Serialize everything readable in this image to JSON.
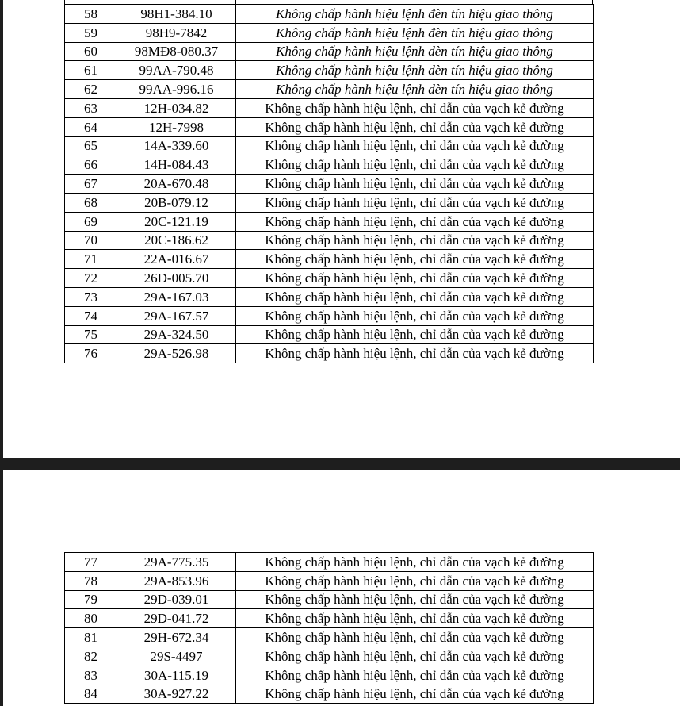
{
  "pages": [
    {
      "table": {
        "rows": [
          [
            "58",
            "98H1-384.10",
            "Không chấp hành hiệu lệnh đèn tín hiệu giao thông"
          ],
          [
            "59",
            "98H9-7842",
            "Không chấp hành hiệu lệnh đèn tín hiệu giao thông"
          ],
          [
            "60",
            "98MĐ8-080.37",
            "Không chấp hành hiệu lệnh đèn tín hiệu giao thông"
          ],
          [
            "61",
            "99AA-790.48",
            "Không chấp hành hiệu lệnh đèn tín hiệu giao thông"
          ],
          [
            "62",
            "99AA-996.16",
            "Không chấp hành hiệu lệnh đèn tín hiệu giao thông"
          ],
          [
            "63",
            "12H-034.82",
            "Không chấp hành hiệu lệnh, chỉ dẫn của vạch kẻ đường"
          ],
          [
            "64",
            "12H-7998",
            "Không chấp hành hiệu lệnh, chỉ dẫn của vạch kẻ đường"
          ],
          [
            "65",
            "14A-339.60",
            "Không chấp hành hiệu lệnh, chỉ dẫn của vạch kẻ đường"
          ],
          [
            "66",
            "14H-084.43",
            "Không chấp hành hiệu lệnh, chỉ dẫn của vạch kẻ đường"
          ],
          [
            "67",
            "20A-670.48",
            "Không chấp hành hiệu lệnh, chỉ dẫn của vạch kẻ đường"
          ],
          [
            "68",
            "20B-079.12",
            "Không chấp hành hiệu lệnh, chỉ dẫn của vạch kẻ đường"
          ],
          [
            "69",
            "20C-121.19",
            "Không chấp hành hiệu lệnh, chỉ dẫn của vạch kẻ đường"
          ],
          [
            "70",
            "20C-186.62",
            "Không chấp hành hiệu lệnh, chỉ dẫn của vạch kẻ đường"
          ],
          [
            "71",
            "22A-016.67",
            "Không chấp hành hiệu lệnh, chỉ dẫn của vạch kẻ đường"
          ],
          [
            "72",
            "26D-005.70",
            "Không chấp hành hiệu lệnh, chỉ dẫn của vạch kẻ đường"
          ],
          [
            "73",
            "29A-167.03",
            "Không chấp hành hiệu lệnh, chỉ dẫn của vạch kẻ đường"
          ],
          [
            "74",
            "29A-167.57",
            "Không chấp hành hiệu lệnh, chỉ dẫn của vạch kẻ đường"
          ],
          [
            "75",
            "29A-324.50",
            "Không chấp hành hiệu lệnh, chỉ dẫn của vạch kẻ đường"
          ],
          [
            "76",
            "29A-526.98",
            "Không chấp hành hiệu lệnh, chỉ dẫn của vạch kẻ đường"
          ]
        ]
      }
    },
    {
      "table": {
        "rows": [
          [
            "77",
            "29A-775.35",
            "Không chấp hành hiệu lệnh, chỉ dẫn của vạch kẻ đường"
          ],
          [
            "78",
            "29A-853.96",
            "Không chấp hành hiệu lệnh, chỉ dẫn của vạch kẻ đường"
          ],
          [
            "79",
            "29D-039.01",
            "Không chấp hành hiệu lệnh, chỉ dẫn của vạch kẻ đường"
          ],
          [
            "80",
            "29D-041.72",
            "Không chấp hành hiệu lệnh, chỉ dẫn của vạch kẻ đường"
          ],
          [
            "81",
            "29H-672.34",
            "Không chấp hành hiệu lệnh, chỉ dẫn của vạch kẻ đường"
          ],
          [
            "82",
            "29S-4497",
            "Không chấp hành hiệu lệnh, chỉ dẫn của vạch kẻ đường"
          ],
          [
            "83",
            "30A-115.19",
            "Không chấp hành hiệu lệnh, chỉ dẫn của vạch kẻ đường"
          ],
          [
            "84",
            "30A-927.22",
            "Không chấp hành hiệu lệnh, chỉ dẫn của vạch kẻ đường"
          ]
        ]
      }
    }
  ]
}
